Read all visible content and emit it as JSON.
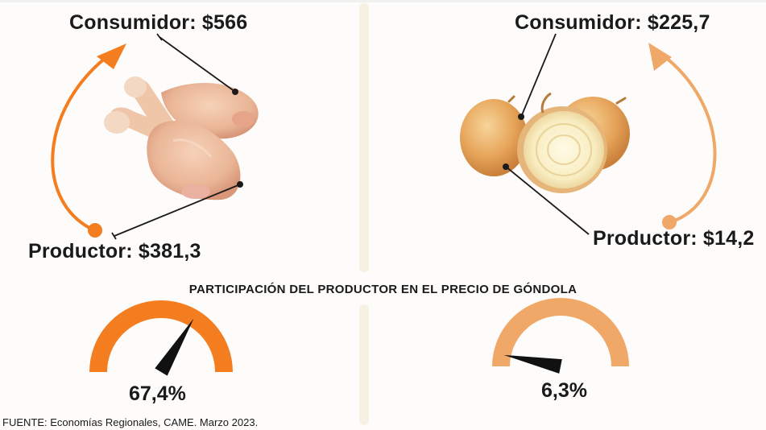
{
  "left": {
    "consumer_label": "Consumidor: $566",
    "producer_label": "Productor: $381,3",
    "gauge_value_label": "67,4%",
    "gauge_fraction": 0.674,
    "product_icon": "chicken-drumsticks",
    "accent_color": "#f47d20"
  },
  "right": {
    "consumer_label": "Consumidor: $225,7",
    "producer_label": "Productor: $14,2",
    "gauge_value_label": "6,3%",
    "gauge_fraction": 0.063,
    "product_icon": "onions",
    "accent_color": "#f0a868"
  },
  "section_title": "PARTICIPACIÓN DEL PRODUCTOR EN EL PRECIO DE GÓNDOLA",
  "source": "FUENTE: Economías Regionales, CAME. Marzo 2023."
}
